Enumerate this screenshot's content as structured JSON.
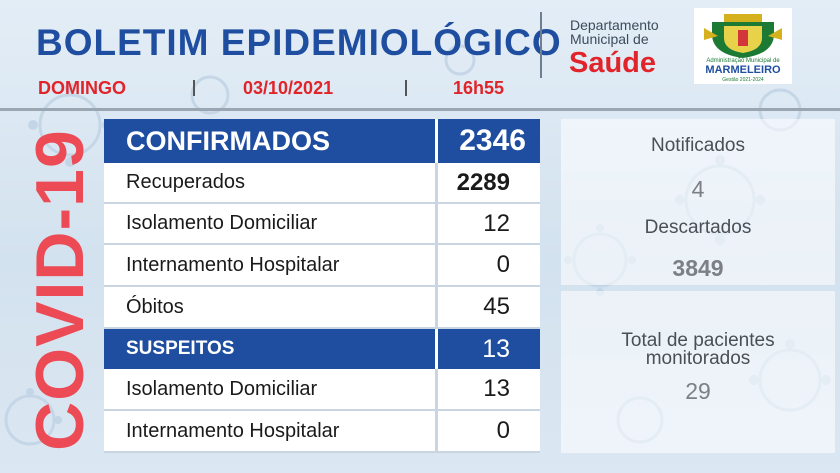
{
  "header": {
    "title": "BOLETIM EPIDEMIOLÓGICO",
    "day": "DOMINGO",
    "date": "03/10/2021",
    "time": "16h55"
  },
  "department": {
    "line1": "Departamento",
    "line2": "Municipal de",
    "name": "Saúde"
  },
  "logo": {
    "line1": "Administração Municipal de",
    "name": "MARMELEIRO",
    "line3": "Gestão 2021-2024"
  },
  "banner": "COVID-19",
  "table": {
    "confirmed": {
      "label": "CONFIRMADOS",
      "value": "2346"
    },
    "recovered": {
      "label": "Recuperados",
      "value": "2289"
    },
    "home_isolation": {
      "label": "Isolamento Domiciliar",
      "value": "12"
    },
    "hospitalized": {
      "label": "Internamento Hospitalar",
      "value": "0"
    },
    "deaths": {
      "label": "Óbitos",
      "value": "45"
    },
    "suspected": {
      "label": "SUSPEITOS",
      "value": "13"
    },
    "suspected_home_isolation": {
      "label": "Isolamento Domiciliar",
      "value": "13"
    },
    "suspected_hospitalized": {
      "label": "Internamento Hospitalar",
      "value": "0"
    }
  },
  "side": {
    "notified": {
      "label": "Notificados",
      "value": "4"
    },
    "discarded": {
      "label": "Descartados",
      "value": "3849"
    },
    "monitored": {
      "label1": "Total de pacientes",
      "label2": "monitorados",
      "value": "29"
    }
  },
  "colors": {
    "primary_blue": "#1f4ea0",
    "accent_red": "#e0242a",
    "covid_red": "#ec4a55"
  }
}
